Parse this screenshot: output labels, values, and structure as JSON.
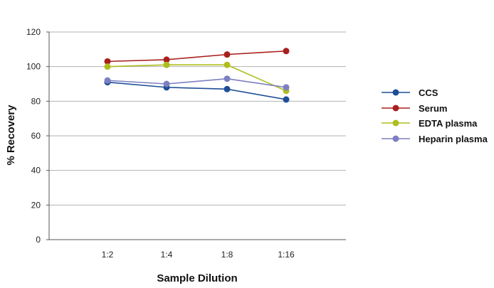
{
  "chart_data": {
    "type": "line",
    "categories": [
      "1:2",
      "1:4",
      "1:8",
      "1:16"
    ],
    "series": [
      {
        "name": "CCS",
        "values": [
          91,
          88,
          87,
          81
        ],
        "color": "#1f4e96"
      },
      {
        "name": "Serum",
        "values": [
          103,
          104,
          107,
          109
        ],
        "color": "#a8201e"
      },
      {
        "name": "EDTA plasma",
        "values": [
          100,
          101,
          101,
          86
        ],
        "color": "#aebd1e"
      },
      {
        "name": "Heparin plasma",
        "values": [
          92,
          90,
          93,
          88
        ],
        "color": "#7d7fc2"
      }
    ],
    "xlabel": "Sample Dilution",
    "ylabel": "% Recovery",
    "ylim": [
      0,
      120
    ],
    "yticks": [
      0,
      20,
      40,
      60,
      80,
      100,
      120
    ],
    "grid": "horizontal",
    "legend_position": "right"
  }
}
